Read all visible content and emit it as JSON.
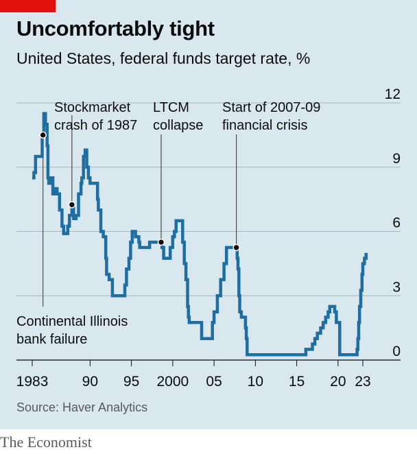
{
  "header": {
    "title": "Uncomfortably tight",
    "subtitle": "United States, federal funds target rate, %"
  },
  "footer": {
    "source": "Source: Haver Analytics",
    "brand": "The Economist"
  },
  "colors": {
    "background": "#d9e7ee",
    "line": "#1e6ea1",
    "accent": "#e3120b",
    "grid": "#9fb7c4"
  },
  "chart_data": {
    "type": "line",
    "title": "Uncomfortably tight",
    "subtitle": "United States, federal funds target rate, %",
    "ylim": [
      0,
      12
    ],
    "xlim": [
      1982.7,
      2024.5
    ],
    "grid": true,
    "y_ticks": [
      {
        "value": 0,
        "label": "0"
      },
      {
        "value": 3,
        "label": "3"
      },
      {
        "value": 6,
        "label": "6"
      },
      {
        "value": 9,
        "label": "9"
      },
      {
        "value": 12,
        "label": "12"
      }
    ],
    "x_ticks": [
      {
        "value": 1983,
        "label": "1983"
      },
      {
        "value": 1990,
        "label": "90"
      },
      {
        "value": 1995,
        "label": "95"
      },
      {
        "value": 2000,
        "label": "2000"
      },
      {
        "value": 2005,
        "label": "05"
      },
      {
        "value": 2010,
        "label": "10"
      },
      {
        "value": 2015,
        "label": "15"
      },
      {
        "value": 2020,
        "label": "20"
      },
      {
        "value": 2023,
        "label": "23"
      }
    ],
    "series": [
      {
        "points": [
          [
            1983.0,
            8.5
          ],
          [
            1983.2,
            8.75
          ],
          [
            1983.4,
            9.5
          ],
          [
            1983.8,
            9.5
          ],
          [
            1984.0,
            9.5
          ],
          [
            1984.2,
            10.5
          ],
          [
            1984.4,
            11.5
          ],
          [
            1984.6,
            11.0
          ],
          [
            1984.8,
            10.0
          ],
          [
            1984.9,
            8.5
          ],
          [
            1985.0,
            8.25
          ],
          [
            1985.3,
            8.5
          ],
          [
            1985.5,
            7.75
          ],
          [
            1985.8,
            8.0
          ],
          [
            1986.0,
            7.75
          ],
          [
            1986.3,
            7.0
          ],
          [
            1986.6,
            6.25
          ],
          [
            1986.8,
            5.9
          ],
          [
            1987.0,
            5.9
          ],
          [
            1987.3,
            6.25
          ],
          [
            1987.5,
            6.75
          ],
          [
            1987.8,
            7.25
          ],
          [
            1988.0,
            6.6
          ],
          [
            1988.3,
            6.75
          ],
          [
            1988.6,
            7.75
          ],
          [
            1988.9,
            8.25
          ],
          [
            1989.0,
            8.5
          ],
          [
            1989.2,
            9.5
          ],
          [
            1989.4,
            9.8
          ],
          [
            1989.6,
            9.0
          ],
          [
            1989.8,
            8.5
          ],
          [
            1990.0,
            8.25
          ],
          [
            1990.5,
            8.25
          ],
          [
            1990.9,
            7.5
          ],
          [
            1991.0,
            7.0
          ],
          [
            1991.3,
            6.0
          ],
          [
            1991.6,
            5.75
          ],
          [
            1991.9,
            4.75
          ],
          [
            1992.0,
            4.0
          ],
          [
            1992.3,
            3.75
          ],
          [
            1992.7,
            3.0
          ],
          [
            1993.0,
            3.0
          ],
          [
            1994.0,
            3.0
          ],
          [
            1994.2,
            3.5
          ],
          [
            1994.4,
            4.25
          ],
          [
            1994.7,
            4.75
          ],
          [
            1994.9,
            5.5
          ],
          [
            1995.1,
            6.0
          ],
          [
            1995.5,
            5.75
          ],
          [
            1995.9,
            5.5
          ],
          [
            1996.0,
            5.25
          ],
          [
            1997.2,
            5.5
          ],
          [
            1998.0,
            5.5
          ],
          [
            1998.5,
            5.5
          ],
          [
            1998.7,
            5.25
          ],
          [
            1998.9,
            4.75
          ],
          [
            1999.4,
            4.75
          ],
          [
            1999.7,
            5.25
          ],
          [
            2000.0,
            5.75
          ],
          [
            2000.2,
            6.0
          ],
          [
            2000.4,
            6.5
          ],
          [
            2001.0,
            6.5
          ],
          [
            2001.2,
            5.5
          ],
          [
            2001.4,
            4.5
          ],
          [
            2001.6,
            3.75
          ],
          [
            2001.8,
            2.5
          ],
          [
            2001.9,
            2.0
          ],
          [
            2002.0,
            1.75
          ],
          [
            2003.0,
            1.75
          ],
          [
            2003.5,
            1.0
          ],
          [
            2004.5,
            1.0
          ],
          [
            2004.8,
            1.75
          ],
          [
            2005.0,
            2.25
          ],
          [
            2005.4,
            3.0
          ],
          [
            2005.8,
            3.75
          ],
          [
            2006.2,
            4.5
          ],
          [
            2006.5,
            5.25
          ],
          [
            2007.0,
            5.25
          ],
          [
            2007.6,
            5.25
          ],
          [
            2007.8,
            4.75
          ],
          [
            2007.9,
            4.25
          ],
          [
            2008.0,
            3.0
          ],
          [
            2008.1,
            2.25
          ],
          [
            2008.3,
            2.0
          ],
          [
            2008.8,
            1.5
          ],
          [
            2008.9,
            1.0
          ],
          [
            2009.0,
            0.25
          ],
          [
            2015.9,
            0.25
          ],
          [
            2016.1,
            0.5
          ],
          [
            2016.9,
            0.75
          ],
          [
            2017.2,
            1.0
          ],
          [
            2017.5,
            1.25
          ],
          [
            2017.9,
            1.5
          ],
          [
            2018.2,
            1.75
          ],
          [
            2018.5,
            2.0
          ],
          [
            2018.8,
            2.25
          ],
          [
            2019.0,
            2.5
          ],
          [
            2019.5,
            2.5
          ],
          [
            2019.6,
            2.25
          ],
          [
            2019.8,
            1.75
          ],
          [
            2020.0,
            1.75
          ],
          [
            2020.2,
            0.25
          ],
          [
            2022.1,
            0.25
          ],
          [
            2022.3,
            0.5
          ],
          [
            2022.4,
            1.0
          ],
          [
            2022.5,
            1.75
          ],
          [
            2022.6,
            2.5
          ],
          [
            2022.75,
            3.25
          ],
          [
            2022.9,
            4.0
          ],
          [
            2023.0,
            4.5
          ],
          [
            2023.2,
            4.75
          ],
          [
            2023.4,
            5.0
          ]
        ]
      }
    ],
    "annotations": [
      {
        "id": "continental",
        "x": 1984.3,
        "y": 10.5,
        "lines": [
          "Continental Illinois",
          "bank failure"
        ]
      },
      {
        "id": "crash87",
        "x": 1987.8,
        "y": 7.25,
        "lines": [
          "Stockmarket",
          "crash of 1987"
        ]
      },
      {
        "id": "ltcm",
        "x": 1998.6,
        "y": 5.5,
        "lines": [
          "LTCM",
          "collapse"
        ]
      },
      {
        "id": "gfc",
        "x": 2007.7,
        "y": 5.25,
        "lines": [
          "Start of 2007-09",
          "financial crisis"
        ]
      }
    ]
  }
}
